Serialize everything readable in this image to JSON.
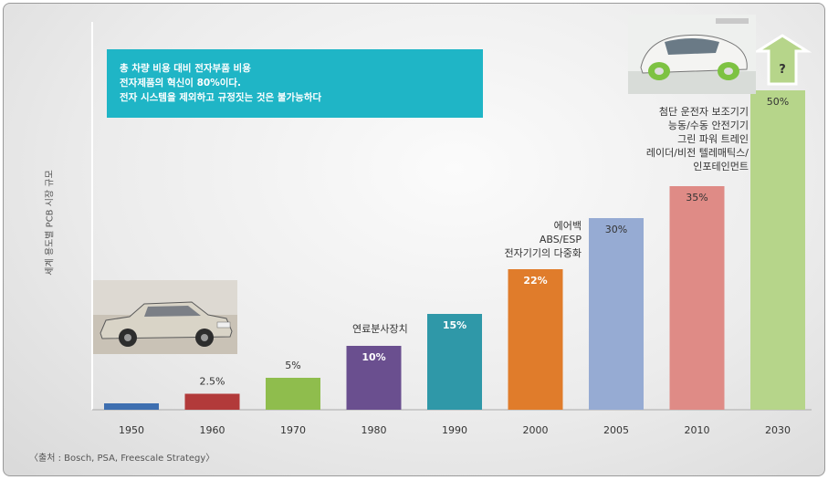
{
  "callout": {
    "line1": "총 차량 비용 대비 전자부품 비용",
    "line2": "전자제품의 혁신이 80%이다.",
    "line3": "전자 시스템을 제외하고 규정짓는 것은 불가능하다"
  },
  "source": "〈출처 : Bosch, PSA, Freescale Strategy〉",
  "annotations": {
    "a1980": "연료분사장치",
    "a2000": [
      "에어백",
      "ABS/ESP",
      "전자기기의 다중화"
    ],
    "a2010": [
      "첨단 운전자 보조기기",
      "능동/수동 안전기기",
      "그린 파워 트레인",
      "레이더/비전 텔레매틱스/",
      "인포테인먼트"
    ]
  },
  "future_marker": "?",
  "chart_data": {
    "type": "bar",
    "ylabel": "세계 용도별 PCB 시장 규모",
    "xlabel": "",
    "categories": [
      "1950",
      "1960",
      "1970",
      "1980",
      "1990",
      "2000",
      "2005",
      "2010",
      "2030"
    ],
    "values": [
      1,
      2.5,
      5,
      10,
      15,
      22,
      30,
      35,
      50
    ],
    "value_labels": [
      "",
      "2.5%",
      "5%",
      "10%",
      "15%",
      "22%",
      "30%",
      "35%",
      "50%"
    ],
    "colors": [
      "#3e6fb0",
      "#b23a3a",
      "#8fbd4d",
      "#6a4f8f",
      "#2f98a8",
      "#e07c2b",
      "#96abd3",
      "#df8b86",
      "#b6d58a"
    ],
    "label_inside": [
      false,
      false,
      false,
      true,
      true,
      true,
      true,
      true,
      true
    ],
    "ylim": [
      0,
      55
    ],
    "grid": false,
    "legend": "none"
  }
}
